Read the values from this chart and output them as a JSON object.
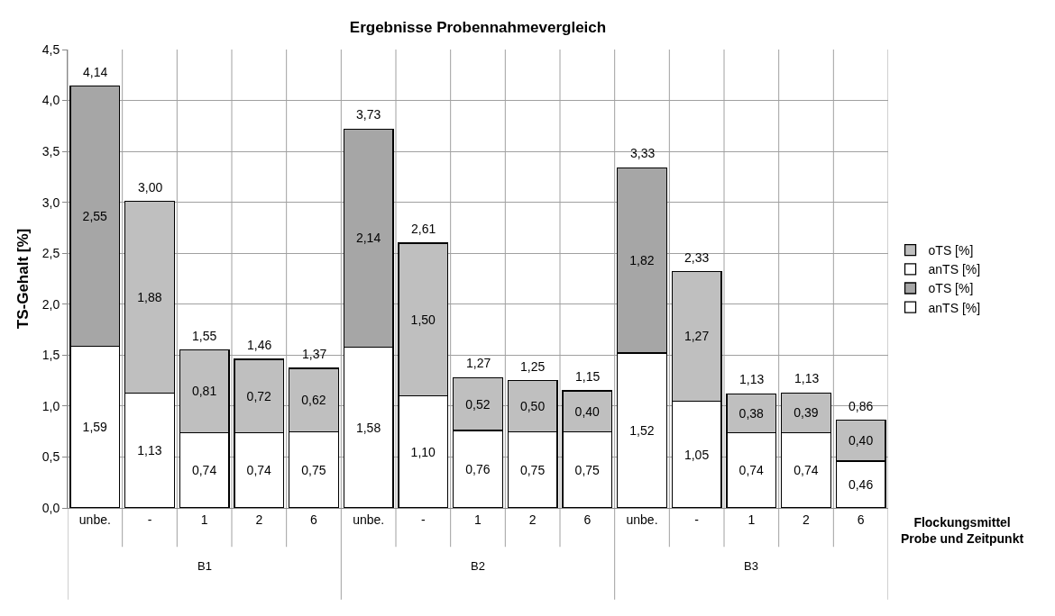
{
  "chart_data": {
    "type": "bar",
    "stacked": true,
    "title": "Ergebnisse Probennahmevergleich",
    "ylabel": "TS-Gehalt [%]",
    "xlabel": "Flockungsmittel\nProbe und Zeitpunkt",
    "categories": [
      "unbe.",
      "-",
      "1",
      "2",
      "6",
      "unbe.",
      "-",
      "1",
      "2",
      "6",
      "unbe.",
      "-",
      "1",
      "2",
      "6"
    ],
    "annotations": [
      "B1",
      "B2",
      "B3"
    ],
    "series": [
      {
        "name": "anTS [%]",
        "color": "#ffffff",
        "values": [
          1.59,
          null,
          null,
          null,
          null,
          1.58,
          null,
          null,
          null,
          null,
          1.52,
          null,
          null,
          null,
          null
        ],
        "value_labels": [
          "1,59",
          null,
          null,
          null,
          null,
          "1,58",
          null,
          null,
          null,
          null,
          "1,52",
          null,
          null,
          null,
          null
        ]
      },
      {
        "name": "oTS [%]",
        "color": "#a6a6a6",
        "values": [
          2.55,
          null,
          null,
          null,
          null,
          2.14,
          null,
          null,
          null,
          null,
          1.82,
          null,
          null,
          null,
          null
        ],
        "value_labels": [
          "2,55",
          null,
          null,
          null,
          null,
          "2,14",
          null,
          null,
          null,
          null,
          "1,82",
          null,
          null,
          null,
          null
        ]
      },
      {
        "name": "anTS [%]",
        "color": "#ffffff",
        "values": [
          null,
          1.13,
          0.74,
          0.74,
          0.75,
          null,
          1.1,
          0.76,
          0.75,
          0.75,
          null,
          1.05,
          0.74,
          0.74,
          0.46
        ],
        "value_labels": [
          null,
          "1,13",
          "0,74",
          "0,74",
          "0,75",
          null,
          "1,10",
          "0,76",
          "0,75",
          "0,75",
          null,
          "1,05",
          "0,74",
          "0,74",
          "0,46"
        ]
      },
      {
        "name": "oTS [%]",
        "color": "#bfbfbf",
        "values": [
          null,
          1.88,
          0.81,
          0.72,
          0.62,
          null,
          1.5,
          0.52,
          0.5,
          0.4,
          null,
          1.27,
          0.38,
          0.39,
          0.4
        ],
        "value_labels": [
          null,
          "1,88",
          "0,81",
          "0,72",
          "0,62",
          null,
          "1,50",
          "0,52",
          "0,50",
          "0,40",
          null,
          "1,27",
          "0,38",
          "0,39",
          "0,40"
        ]
      }
    ],
    "totals": [
      "4,14",
      "3,00",
      "1,55",
      "1,46",
      "1,37",
      "3,73",
      "2,61",
      "1,27",
      "1,25",
      "1,15",
      "3,33",
      "2,33",
      "1,13",
      "1,13",
      "0,86"
    ],
    "ylim": [
      0,
      4.5
    ],
    "yticks": [
      {
        "value": 0,
        "label": "0,0"
      },
      {
        "value": 0.5,
        "label": "0,5"
      },
      {
        "value": 1,
        "label": "1,0"
      },
      {
        "value": 1.5,
        "label": "1,5"
      },
      {
        "value": 2,
        "label": "2,0"
      },
      {
        "value": 2.5,
        "label": "2,5"
      },
      {
        "value": 3,
        "label": "3,0"
      },
      {
        "value": 3.5,
        "label": "3,5"
      },
      {
        "value": 4,
        "label": "4,0"
      },
      {
        "value": 4.5,
        "label": "4,5"
      }
    ],
    "grid": true,
    "legend": "right"
  }
}
